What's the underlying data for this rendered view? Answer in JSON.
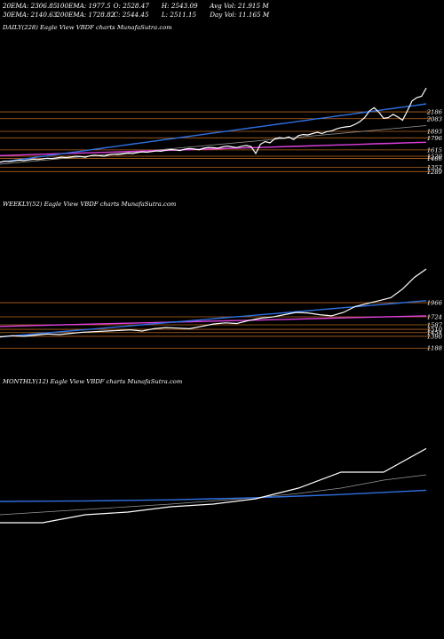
{
  "stats": {
    "ema20": "20EMA: 2306.85",
    "ema100": "100EMA: 1977.5",
    "open": "O: 2528.47",
    "high": "H: 2543.09",
    "avg_vol": "Avg Vol: 21.915 M",
    "ema30": "30EMA: 2140.63",
    "ema200": "200EMA: 1728.82",
    "close": "C: 2544.45",
    "low": "L: 2511.15",
    "day_vol": "Day Vol: 11.165 M"
  },
  "colors": {
    "price": "#ffffff",
    "ma_blue": "#2f6fe0",
    "ma_magenta": "#e040e0",
    "level": "#b5651d",
    "ma_grey": "#9a9a9a"
  },
  "chart_data": [
    {
      "type": "line",
      "title": "DAILY(228) Eagle  View  VBDF charts MunafaSutra.com",
      "levels": [
        {
          "label": "2186",
          "value": 2186
        },
        {
          "label": "2083",
          "value": 2083
        },
        {
          "label": "1893",
          "value": 1893
        },
        {
          "label": "1796",
          "value": 1796
        },
        {
          "label": "1615",
          "value": 1615
        },
        {
          "label": "1520",
          "value": 1520
        },
        {
          "label": "1486",
          "value": 1486
        },
        {
          "label": "1352",
          "value": 1352
        },
        {
          "label": "1289",
          "value": 1289
        }
      ],
      "ylim": [
        1200,
        2560
      ],
      "series": [
        {
          "role": "price",
          "values": [
            1430,
            1445,
            1440,
            1450,
            1460,
            1455,
            1465,
            1475,
            1470,
            1480,
            1490,
            1485,
            1495,
            1505,
            1500,
            1510,
            1520,
            1515,
            1505,
            1525,
            1535,
            1528,
            1520,
            1540,
            1550,
            1545,
            1555,
            1565,
            1560,
            1575,
            1585,
            1580,
            1590,
            1600,
            1595,
            1610,
            1620,
            1614,
            1605,
            1625,
            1635,
            1628,
            1618,
            1640,
            1652,
            1648,
            1640,
            1660,
            1672,
            1660,
            1650,
            1670,
            1680,
            1665,
            1560,
            1700,
            1740,
            1720,
            1780,
            1800,
            1790,
            1810,
            1770,
            1830,
            1845,
            1840,
            1860,
            1880,
            1860,
            1890,
            1900,
            1930,
            1950,
            1960,
            1970,
            2000,
            2040,
            2100,
            2200,
            2250,
            2180,
            2090,
            2100,
            2150,
            2110,
            2060,
            2200,
            2350,
            2400,
            2420,
            2544
          ]
        },
        {
          "role": "ma_blue",
          "values": [
            1430,
            1442,
            1454,
            1466,
            1478,
            1490,
            1502,
            1514,
            1526,
            1538,
            1550,
            1562,
            1574,
            1586,
            1598,
            1610,
            1622,
            1634,
            1646,
            1658,
            1670,
            1682,
            1694,
            1706,
            1718,
            1730,
            1742,
            1754,
            1766,
            1778,
            1790,
            1802,
            1814,
            1826,
            1838,
            1850,
            1862,
            1874,
            1886,
            1898,
            1910,
            1922,
            1934,
            1946,
            1958,
            1970,
            1982,
            1994,
            2006,
            2018,
            2030,
            2042,
            2054,
            2066,
            2078,
            2090,
            2102,
            2114,
            2126,
            2138,
            2150,
            2162,
            2174,
            2186,
            2198,
            2210,
            2222,
            2234,
            2246,
            2258,
            2270,
            2282,
            2294,
            2306
          ]
        },
        {
          "role": "ma_magenta",
          "values": [
            1530,
            1538,
            1546,
            1554,
            1562,
            1570,
            1578,
            1586,
            1594,
            1602,
            1610,
            1618,
            1626,
            1634,
            1642,
            1650,
            1658,
            1666,
            1674,
            1682,
            1690,
            1698,
            1706,
            1714,
            1722,
            1730
          ]
        },
        {
          "role": "ma_grey",
          "values": [
            1400,
            1420,
            1440,
            1460,
            1480,
            1500,
            1520,
            1540,
            1560,
            1580,
            1600,
            1620,
            1640,
            1660,
            1680,
            1700,
            1720,
            1740,
            1760,
            1780,
            1800,
            1820,
            1840,
            1860,
            1880,
            1900,
            1920,
            1940,
            1960,
            1980
          ]
        }
      ]
    },
    {
      "type": "line",
      "title": "WEEKLY(52) Eagle  View  VBDF charts MunafaSutra.com",
      "levels": [
        {
          "label": "1966",
          "value": 1966
        },
        {
          "label": "1724",
          "value": 1724
        },
        {
          "label": "1587",
          "value": 1587
        },
        {
          "label": "1510",
          "value": 1510
        },
        {
          "label": "1454",
          "value": 1454
        },
        {
          "label": "1390",
          "value": 1390
        },
        {
          "label": "1188",
          "value": 1188
        }
      ],
      "ylim": [
        1100,
        2560
      ],
      "series": [
        {
          "role": "price",
          "values": [
            1380,
            1400,
            1390,
            1410,
            1430,
            1420,
            1440,
            1460,
            1470,
            1480,
            1490,
            1500,
            1480,
            1520,
            1540,
            1530,
            1520,
            1560,
            1600,
            1620,
            1610,
            1660,
            1700,
            1720,
            1760,
            1800,
            1790,
            1760,
            1740,
            1800,
            1900,
            1950,
            2000,
            2050,
            2200,
            2400,
            2544
          ]
        },
        {
          "role": "ma_blue",
          "values": [
            1380,
            1400,
            1420,
            1440,
            1460,
            1480,
            1500,
            1520,
            1540,
            1560,
            1580,
            1600,
            1620,
            1640,
            1660,
            1680,
            1700,
            1720,
            1740,
            1760,
            1780,
            1800,
            1820,
            1840,
            1860,
            1880,
            1900,
            1920,
            1940,
            1960,
            1980,
            2000
          ]
        },
        {
          "role": "ma_magenta",
          "values": [
            1560,
            1580,
            1600,
            1620,
            1640,
            1660,
            1680,
            1700,
            1720,
            1740
          ]
        }
      ]
    },
    {
      "type": "line",
      "title": "MONTHLY(12) Eagle  View  VBDF charts MunafaSutra.com",
      "levels": [],
      "ylim": [
        800,
        2800
      ],
      "series": [
        {
          "role": "price",
          "values": [
            1150,
            1150,
            1300,
            1350,
            1450,
            1500,
            1600,
            1800,
            2100,
            2100,
            2544
          ]
        },
        {
          "role": "ma_blue",
          "values": [
            1550,
            1555,
            1560,
            1570,
            1580,
            1600,
            1620,
            1650,
            1680,
            1720,
            1760
          ]
        },
        {
          "role": "ma_grey",
          "values": [
            1300,
            1350,
            1400,
            1450,
            1500,
            1560,
            1620,
            1700,
            1800,
            1950,
            2050
          ]
        }
      ]
    }
  ]
}
